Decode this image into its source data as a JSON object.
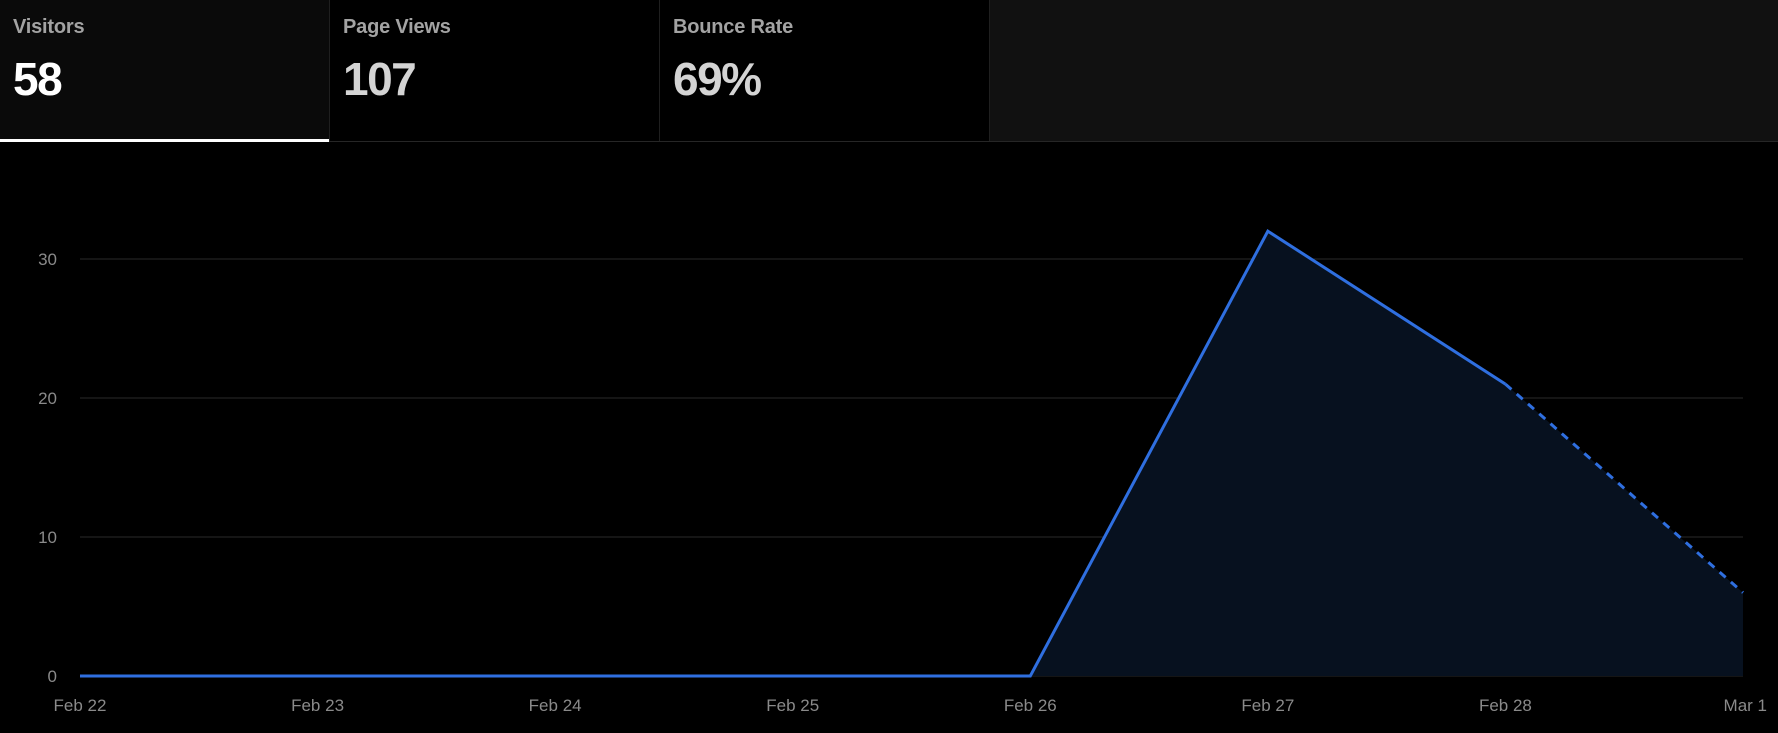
{
  "tabs": [
    {
      "label": "Visitors",
      "value": "58",
      "active": true
    },
    {
      "label": "Page Views",
      "value": "107",
      "active": false
    },
    {
      "label": "Bounce Rate",
      "value": "69%",
      "active": false
    }
  ],
  "colors": {
    "line": "#2f6fe0",
    "area": "#07111f",
    "grid": "#2a2a2a",
    "axis_text": "#8a8a8a"
  },
  "chart_data": {
    "type": "area",
    "x": [
      "Feb 22",
      "Feb 23",
      "Feb 24",
      "Feb 25",
      "Feb 26",
      "Feb 27",
      "Feb 28",
      "Mar 1"
    ],
    "series": [
      {
        "values": [
          0,
          0,
          0,
          0,
          0,
          32,
          21,
          6
        ]
      }
    ],
    "dashed_from": "Feb 28",
    "ylim": [
      0,
      30
    ],
    "yticks": [
      0,
      10,
      20,
      30
    ],
    "grid": true,
    "title": "",
    "xlabel": "",
    "ylabel": ""
  }
}
